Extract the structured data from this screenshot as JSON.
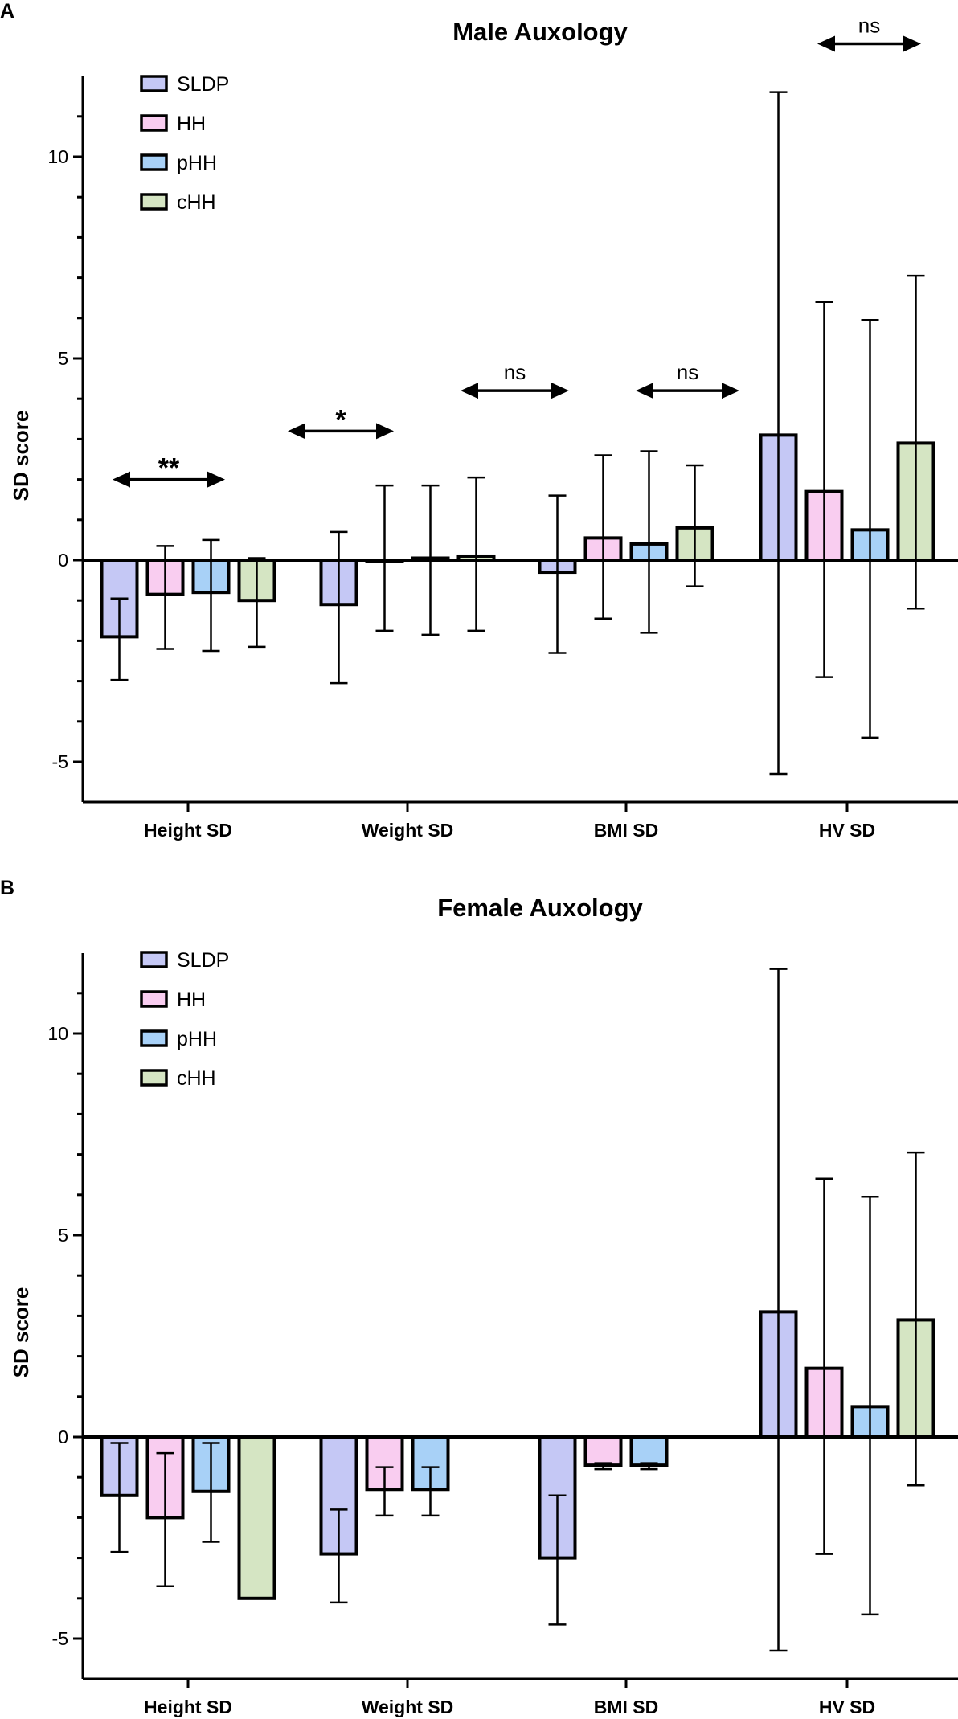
{
  "chart_data": [
    {
      "panel": "A",
      "type": "bar",
      "title": "Male Auxology",
      "ylabel": "SD score",
      "xlabel": "",
      "ylim": [
        -6,
        12
      ],
      "yticks": [
        -5,
        0,
        5,
        10
      ],
      "yticklabels": [
        "-5",
        "0",
        "5",
        "10"
      ],
      "categories": [
        "Height SD",
        "Weight SD",
        "BMI SD",
        "HV SD"
      ],
      "series": [
        {
          "name": "SLDP",
          "color": "#c5c8f5",
          "values": [
            -1.9,
            -1.1,
            -0.3,
            3.1
          ],
          "err_low": [
            -2.97,
            -3.05,
            -2.3,
            -5.3
          ],
          "err_high": [
            -0.95,
            0.7,
            1.6,
            11.6
          ]
        },
        {
          "name": "HH",
          "color": "#f9cdf0",
          "values": [
            -0.85,
            -0.02,
            0.55,
            1.7
          ],
          "err_low": [
            -2.2,
            -1.75,
            -1.45,
            -2.9
          ],
          "err_high": [
            0.35,
            1.85,
            2.6,
            6.4
          ]
        },
        {
          "name": "pHH",
          "color": "#a8d1f7",
          "values": [
            -0.8,
            0.05,
            0.4,
            0.75
          ],
          "err_low": [
            -2.25,
            -1.85,
            -1.8,
            -4.4
          ],
          "err_high": [
            0.5,
            1.85,
            2.7,
            5.95
          ]
        },
        {
          "name": "cHH",
          "color": "#d5e5c3",
          "values": [
            -1.0,
            0.1,
            0.8,
            2.9
          ],
          "err_low": [
            -2.15,
            -1.75,
            -0.65,
            -1.2
          ],
          "err_high": [
            0.05,
            2.05,
            2.35,
            7.05
          ]
        }
      ],
      "annotations": [
        {
          "category": "Height SD",
          "label": "**",
          "y": 2.0
        },
        {
          "category": "Weight SD",
          "label": "*",
          "y": 3.2
        },
        {
          "category": "Weight SD|BMI SD",
          "label": "ns",
          "y": 4.2
        },
        {
          "category": "BMI SD",
          "label": "ns",
          "y": 4.2
        },
        {
          "category": "HV SD",
          "label": "ns",
          "y": 12.8
        }
      ]
    },
    {
      "panel": "B",
      "type": "bar",
      "title": "Female Auxology",
      "ylabel": "SD score",
      "xlabel": "",
      "ylim": [
        -6,
        12
      ],
      "yticks": [
        -5,
        0,
        5,
        10
      ],
      "yticklabels": [
        "-5",
        "0",
        "5",
        "10"
      ],
      "categories": [
        "Height SD",
        "Weight SD",
        "BMI SD",
        "HV SD"
      ],
      "series": [
        {
          "name": "SLDP",
          "color": "#c5c8f5",
          "values": [
            -1.45,
            -2.9,
            -3.0,
            3.1
          ],
          "err_low": [
            -2.85,
            -4.1,
            -4.65,
            -5.3
          ],
          "err_high": [
            -0.15,
            -1.8,
            -1.45,
            11.6
          ]
        },
        {
          "name": "HH",
          "color": "#f9cdf0",
          "values": [
            -2.0,
            -1.3,
            -0.7,
            1.7
          ],
          "err_low": [
            -3.7,
            -1.95,
            -0.8,
            -2.9
          ],
          "err_high": [
            -0.4,
            -0.75,
            -0.65,
            6.4
          ]
        },
        {
          "name": "pHH",
          "color": "#a8d1f7",
          "values": [
            -1.35,
            -1.3,
            -0.7,
            0.75
          ],
          "err_low": [
            -2.6,
            -1.95,
            -0.8,
            -4.4
          ],
          "err_high": [
            -0.15,
            -0.75,
            -0.65,
            5.95
          ]
        },
        {
          "name": "cHH",
          "color": "#d5e5c3",
          "values": [
            -4.0,
            null,
            null,
            2.9
          ],
          "err_low": [
            null,
            null,
            null,
            -1.2
          ],
          "err_high": [
            null,
            null,
            null,
            7.05
          ]
        }
      ],
      "annotations": []
    }
  ]
}
